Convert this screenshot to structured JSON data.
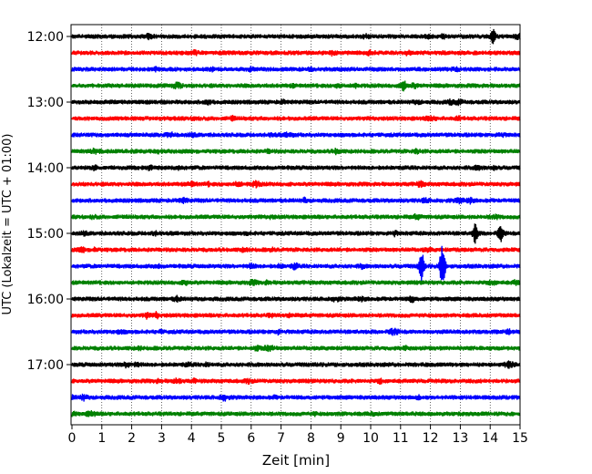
{
  "chart_data": {
    "type": "line",
    "title": "",
    "xlabel": "Zeit  [min]",
    "ylabel": "UTC (Lokalzeit = UTC + 01:00)",
    "xlim": [
      0,
      15
    ],
    "x_ticks": [
      "0",
      "1",
      "2",
      "3",
      "4",
      "5",
      "6",
      "7",
      "8",
      "9",
      "10",
      "11",
      "12",
      "13",
      "14",
      "15"
    ],
    "y_tick_labels": [
      "12:00",
      "13:00",
      "14:00",
      "15:00",
      "16:00",
      "17:00"
    ],
    "grid": "vertical dotted",
    "trace_start_times": [
      "12:00",
      "12:15",
      "12:30",
      "12:45",
      "13:00",
      "13:15",
      "13:30",
      "13:45",
      "14:00",
      "14:15",
      "14:30",
      "14:45",
      "15:00",
      "15:15",
      "15:30",
      "15:45",
      "16:00",
      "16:15",
      "16:30",
      "16:45",
      "17:00",
      "17:15",
      "17:30",
      "17:45"
    ],
    "trace_colors": [
      "#000000",
      "#ff0000",
      "#0000ff",
      "#008000"
    ],
    "notable_events": [
      {
        "trace": "15:00",
        "minute": 13.5,
        "relative_amplitude": 0.6
      },
      {
        "trace": "15:00",
        "minute": 14.35,
        "relative_amplitude": 0.4
      },
      {
        "trace": "15:30",
        "minute": 11.7,
        "relative_amplitude": 1.0
      },
      {
        "trace": "15:30",
        "minute": 12.4,
        "relative_amplitude": 1.6
      },
      {
        "trace": "12:00",
        "minute": 14.1,
        "relative_amplitude": 0.45
      },
      {
        "trace": "12:45",
        "minute": 11.1,
        "relative_amplitude": 0.35
      }
    ]
  }
}
